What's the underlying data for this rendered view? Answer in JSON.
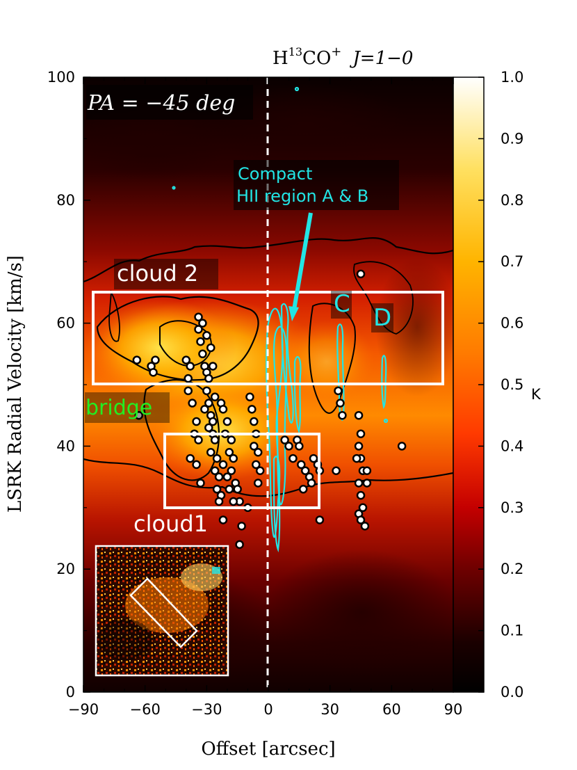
{
  "chart_data": {
    "type": "heatmap",
    "title": "H13CO+ J=1-0",
    "title_parts": {
      "main": "H",
      "sup": "13",
      "rest": "CO",
      "plus": "+",
      "trans": "J=1−0"
    },
    "panel_label": "PA = −45 deg",
    "xlabel": "Offset [arcsec]",
    "ylabel": "LSRK Radial Velocity [km/s]",
    "xlim": [
      -90,
      90
    ],
    "ylim": [
      0,
      100
    ],
    "x_ticks": [
      -90,
      -60,
      -30,
      0,
      30,
      60,
      90
    ],
    "x_tick_labels": [
      "−90",
      "−60",
      "−30",
      "0",
      "30",
      "60",
      "90"
    ],
    "y_ticks": [
      0,
      20,
      40,
      60,
      80,
      100
    ],
    "y_tick_labels": [
      "0",
      "20",
      "40",
      "60",
      "80",
      "100"
    ],
    "colorbar": {
      "unit": "K",
      "range": [
        0.0,
        1.0
      ],
      "ticks": [
        0.0,
        0.1,
        0.2,
        0.3,
        0.4,
        0.5,
        0.6,
        0.7,
        0.8,
        0.9,
        1.0
      ],
      "tick_labels": [
        "0.0",
        "0.1",
        "0.2",
        "0.3",
        "0.4",
        "0.5",
        "0.6",
        "0.7",
        "0.8",
        "0.9",
        "1.0"
      ]
    },
    "annotations": {
      "cloud2": "cloud 2",
      "cloud1": "cloud1",
      "bridge": "bridge",
      "compact_line1": "Compact",
      "compact_line2": "HII region A & B",
      "c": "C",
      "d": "D"
    },
    "regions": [
      {
        "name": "cloud 2",
        "x": [
          -84,
          85
        ],
        "y": [
          50,
          65
        ]
      },
      {
        "name": "cloud1",
        "x": [
          -50,
          25
        ],
        "y": [
          30,
          42
        ]
      }
    ],
    "zero_offset_line": 0,
    "points": [
      [
        -64,
        54
      ],
      [
        -57,
        53
      ],
      [
        -55,
        54
      ],
      [
        -56,
        52
      ],
      [
        -63,
        45
      ],
      [
        -40,
        54
      ],
      [
        -39,
        51
      ],
      [
        -38,
        53
      ],
      [
        -39,
        49
      ],
      [
        -37,
        47
      ],
      [
        -35,
        44
      ],
      [
        -36,
        42
      ],
      [
        -34,
        41
      ],
      [
        -38,
        38
      ],
      [
        -35,
        37
      ],
      [
        -33,
        34
      ],
      [
        -34,
        61
      ],
      [
        -34,
        59
      ],
      [
        -33,
        57
      ],
      [
        -32,
        55
      ],
      [
        -31,
        53
      ],
      [
        -30,
        52
      ],
      [
        -29,
        51
      ],
      [
        -30,
        49
      ],
      [
        -29,
        47
      ],
      [
        -31,
        46
      ],
      [
        -28,
        45
      ],
      [
        -27,
        44
      ],
      [
        -29,
        43
      ],
      [
        -27,
        42
      ],
      [
        -26,
        41
      ],
      [
        -28,
        39
      ],
      [
        -25,
        38
      ],
      [
        -26,
        36
      ],
      [
        -24,
        35
      ],
      [
        -25,
        33
      ],
      [
        -23,
        32
      ],
      [
        -24,
        31
      ],
      [
        -32,
        60
      ],
      [
        -30,
        58
      ],
      [
        -28,
        56
      ],
      [
        -27,
        53
      ],
      [
        -26,
        48
      ],
      [
        -23,
        47
      ],
      [
        -22,
        46
      ],
      [
        -20,
        44
      ],
      [
        -21,
        42
      ],
      [
        -18,
        41
      ],
      [
        -19,
        39
      ],
      [
        -17,
        38
      ],
      [
        -18,
        36
      ],
      [
        -16,
        34
      ],
      [
        -15,
        33
      ],
      [
        -14,
        31
      ],
      [
        -22,
        37
      ],
      [
        -20,
        35
      ],
      [
        -19,
        33
      ],
      [
        -17,
        31
      ],
      [
        -22,
        28
      ],
      [
        -9,
        48
      ],
      [
        -8,
        46
      ],
      [
        -7,
        44
      ],
      [
        -6,
        42
      ],
      [
        -7,
        40
      ],
      [
        -5,
        39
      ],
      [
        -6,
        37
      ],
      [
        -4,
        36
      ],
      [
        -5,
        34
      ],
      [
        -10,
        30
      ],
      [
        -13,
        27
      ],
      [
        -14,
        24
      ],
      [
        8,
        41
      ],
      [
        10,
        40
      ],
      [
        12,
        38
      ],
      [
        14,
        41
      ],
      [
        15,
        40
      ],
      [
        16,
        37
      ],
      [
        18,
        36
      ],
      [
        20,
        35
      ],
      [
        22,
        38
      ],
      [
        24,
        37
      ],
      [
        25,
        36
      ],
      [
        21,
        34
      ],
      [
        17,
        33
      ],
      [
        25,
        28
      ],
      [
        44,
        45
      ],
      [
        45,
        42
      ],
      [
        44,
        40
      ],
      [
        45,
        38
      ],
      [
        46,
        36
      ],
      [
        44,
        34
      ],
      [
        45,
        32
      ],
      [
        46,
        30
      ],
      [
        44,
        29
      ],
      [
        45,
        28
      ],
      [
        47,
        27
      ],
      [
        48,
        36
      ],
      [
        48,
        34
      ],
      [
        43,
        38
      ],
      [
        35,
        47
      ],
      [
        36,
        45
      ],
      [
        34,
        49
      ],
      [
        33,
        36
      ],
      [
        45,
        68
      ],
      [
        65,
        40
      ]
    ]
  }
}
